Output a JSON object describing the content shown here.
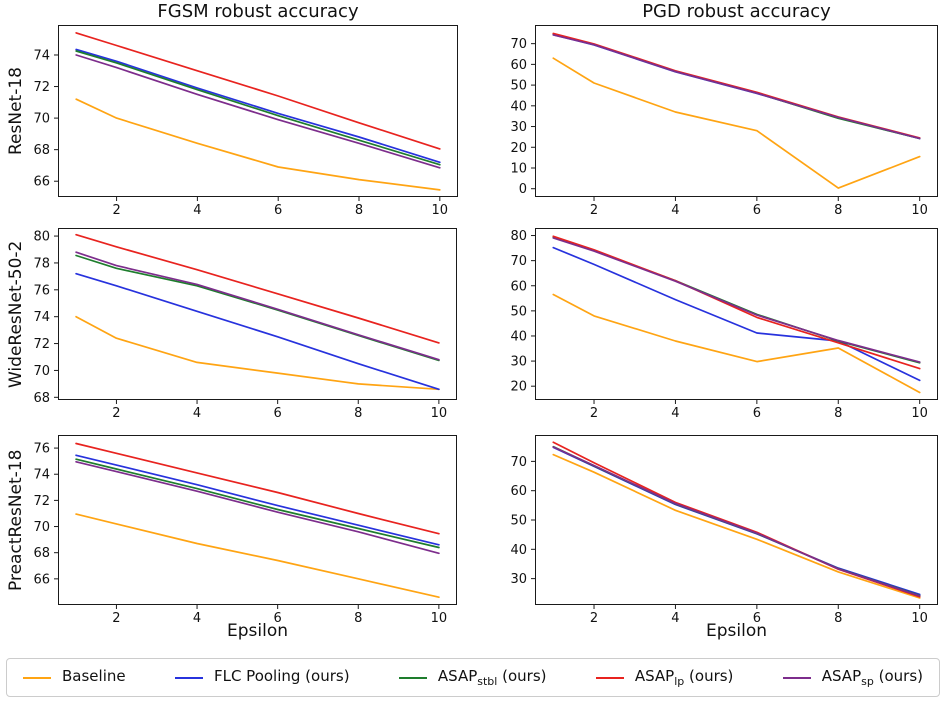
{
  "figure": {
    "col_titles": [
      "FGSM robust accuracy",
      "PGD robust accuracy"
    ],
    "row_labels": [
      "ResNet-18",
      "WideResNet-50-2",
      "PreactResNet-18"
    ],
    "xlabel": "Epsilon",
    "axis_color": "#1a1a1a",
    "legend": {
      "items": [
        {
          "main": "Baseline",
          "sub": "",
          "rest": "",
          "color": "#FFA413"
        },
        {
          "main": "FLC Pooling (ours)",
          "sub": "",
          "rest": "",
          "color": "#2732DD"
        },
        {
          "main": "ASAP",
          "sub": "stbl",
          "rest": " (ours)",
          "color": "#1E7D2D"
        },
        {
          "main": "ASAP",
          "sub": "lp",
          "rest": " (ours)",
          "color": "#E8231F"
        },
        {
          "main": "ASAP",
          "sub": "sp",
          "rest": " (ours)",
          "color": "#7D2D8C"
        }
      ]
    }
  },
  "chart_data": [
    {
      "type": "line",
      "model": "ResNet-18",
      "attack": "FGSM",
      "x": [
        1,
        2,
        4,
        6,
        8,
        10
      ],
      "xlim": [
        0.55,
        10.45
      ],
      "ylim": [
        65.0,
        75.9
      ],
      "xticks": [
        2,
        4,
        6,
        8,
        10
      ],
      "yticks": [
        66,
        68,
        70,
        72,
        74
      ],
      "grid": false,
      "series": [
        {
          "name": "Baseline",
          "color": "#FFA413",
          "values": [
            71.2,
            70.0,
            68.4,
            66.9,
            66.1,
            65.45
          ]
        },
        {
          "name": "FLC Pooling (ours)",
          "color": "#2732DD",
          "values": [
            74.35,
            73.6,
            71.9,
            70.3,
            68.8,
            67.2
          ]
        },
        {
          "name": "ASAP_stbl (ours)",
          "color": "#1E7D2D",
          "values": [
            74.25,
            73.5,
            71.8,
            70.15,
            68.6,
            67.05
          ]
        },
        {
          "name": "ASAP_lp (ours)",
          "color": "#E8231F",
          "values": [
            75.4,
            74.6,
            73.0,
            71.4,
            69.7,
            68.05
          ]
        },
        {
          "name": "ASAP_sp (ours)",
          "color": "#7D2D8C",
          "values": [
            74.0,
            73.2,
            71.5,
            69.9,
            68.4,
            66.85
          ]
        }
      ]
    },
    {
      "type": "line",
      "model": "ResNet-18",
      "attack": "PGD",
      "x": [
        1,
        2,
        4,
        6,
        8,
        10
      ],
      "xlim": [
        0.55,
        10.45
      ],
      "ylim": [
        -4,
        79
      ],
      "xticks": [
        2,
        4,
        6,
        8,
        10
      ],
      "yticks": [
        0,
        10,
        20,
        30,
        40,
        50,
        60,
        70
      ],
      "grid": false,
      "series": [
        {
          "name": "Baseline",
          "color": "#FFA413",
          "values": [
            63.0,
            51.0,
            37.0,
            28.0,
            0.3,
            15.5
          ]
        },
        {
          "name": "FLC Pooling (ours)",
          "color": "#2732DD",
          "values": [
            74.3,
            69.4,
            56.4,
            46.0,
            34.3,
            24.2
          ]
        },
        {
          "name": "ASAP_stbl (ours)",
          "color": "#1E7D2D",
          "values": [
            74.5,
            69.6,
            56.6,
            46.2,
            34.0,
            24.3
          ]
        },
        {
          "name": "ASAP_lp (ours)",
          "color": "#E8231F",
          "values": [
            74.9,
            69.9,
            56.9,
            46.5,
            34.6,
            24.5
          ]
        },
        {
          "name": "ASAP_sp (ours)",
          "color": "#7D2D8C",
          "values": [
            74.2,
            69.5,
            56.5,
            46.1,
            34.4,
            24.3
          ]
        }
      ]
    },
    {
      "type": "line",
      "model": "WideResNet-50-2",
      "attack": "FGSM",
      "x": [
        1,
        2,
        4,
        6,
        8,
        10
      ],
      "xlim": [
        0.55,
        10.45
      ],
      "ylim": [
        67.8,
        80.6
      ],
      "xticks": [
        2,
        4,
        6,
        8,
        10
      ],
      "yticks": [
        68,
        70,
        72,
        74,
        76,
        78,
        80
      ],
      "grid": false,
      "series": [
        {
          "name": "Baseline",
          "color": "#FFA413",
          "values": [
            74.0,
            72.4,
            70.6,
            69.8,
            69.0,
            68.6
          ]
        },
        {
          "name": "FLC Pooling (ours)",
          "color": "#2732DD",
          "values": [
            77.2,
            76.3,
            74.4,
            72.5,
            70.5,
            68.6
          ]
        },
        {
          "name": "ASAP_stbl (ours)",
          "color": "#1E7D2D",
          "values": [
            78.55,
            77.6,
            76.3,
            74.5,
            72.6,
            70.75
          ]
        },
        {
          "name": "ASAP_lp (ours)",
          "color": "#E8231F",
          "values": [
            80.1,
            79.2,
            77.5,
            75.7,
            73.9,
            72.05
          ]
        },
        {
          "name": "ASAP_sp (ours)",
          "color": "#7D2D8C",
          "values": [
            78.8,
            77.8,
            76.4,
            74.55,
            72.65,
            70.8
          ]
        }
      ]
    },
    {
      "type": "line",
      "model": "WideResNet-50-2",
      "attack": "PGD",
      "x": [
        1,
        2,
        4,
        6,
        8,
        10
      ],
      "xlim": [
        0.55,
        10.45
      ],
      "ylim": [
        14.5,
        83
      ],
      "xticks": [
        2,
        4,
        6,
        8,
        10
      ],
      "yticks": [
        20,
        30,
        40,
        50,
        60,
        70,
        80
      ],
      "grid": false,
      "series": [
        {
          "name": "Baseline",
          "color": "#FFA413",
          "values": [
            56.5,
            48.0,
            38.0,
            29.8,
            35.2,
            17.5
          ]
        },
        {
          "name": "FLC Pooling (ours)",
          "color": "#2732DD",
          "values": [
            75.2,
            68.5,
            54.5,
            41.2,
            38.0,
            22.3
          ]
        },
        {
          "name": "ASAP_stbl (ours)",
          "color": "#1E7D2D",
          "values": [
            79.3,
            74.0,
            62.0,
            48.6,
            38.0,
            29.3
          ]
        },
        {
          "name": "ASAP_lp (ours)",
          "color": "#E8231F",
          "values": [
            79.7,
            74.3,
            62.0,
            47.4,
            37.3,
            27.0
          ]
        },
        {
          "name": "ASAP_sp (ours)",
          "color": "#7D2D8C",
          "values": [
            79.0,
            73.8,
            61.8,
            48.3,
            38.2,
            29.6
          ]
        }
      ]
    },
    {
      "type": "line",
      "model": "PreactResNet-18",
      "attack": "FGSM",
      "x": [
        1,
        2,
        4,
        6,
        8,
        10
      ],
      "xlim": [
        0.55,
        10.45
      ],
      "ylim": [
        64.0,
        77.0
      ],
      "xticks": [
        2,
        4,
        6,
        8,
        10
      ],
      "yticks": [
        66,
        68,
        70,
        72,
        74,
        76
      ],
      "grid": false,
      "series": [
        {
          "name": "Baseline",
          "color": "#FFA413",
          "values": [
            70.95,
            70.2,
            68.7,
            67.4,
            66.0,
            64.6
          ]
        },
        {
          "name": "FLC Pooling (ours)",
          "color": "#2732DD",
          "values": [
            75.45,
            74.7,
            73.2,
            71.6,
            70.1,
            68.6
          ]
        },
        {
          "name": "ASAP_stbl (ours)",
          "color": "#1E7D2D",
          "values": [
            75.15,
            74.4,
            72.9,
            71.3,
            69.85,
            68.4
          ]
        },
        {
          "name": "ASAP_lp (ours)",
          "color": "#E8231F",
          "values": [
            76.35,
            75.6,
            74.1,
            72.6,
            71.0,
            69.45
          ]
        },
        {
          "name": "ASAP_sp (ours)",
          "color": "#7D2D8C",
          "values": [
            74.95,
            74.2,
            72.7,
            71.1,
            69.6,
            67.95
          ]
        }
      ]
    },
    {
      "type": "line",
      "model": "PreactResNet-18",
      "attack": "PGD",
      "x": [
        1,
        2,
        4,
        6,
        8,
        10
      ],
      "xlim": [
        0.55,
        10.45
      ],
      "ylim": [
        21,
        79
      ],
      "xticks": [
        2,
        4,
        6,
        8,
        10
      ],
      "yticks": [
        30,
        40,
        50,
        60,
        70
      ],
      "grid": false,
      "series": [
        {
          "name": "Baseline",
          "color": "#FFA413",
          "values": [
            72.3,
            66.3,
            53.3,
            43.4,
            32.3,
            23.4
          ]
        },
        {
          "name": "FLC Pooling (ours)",
          "color": "#2732DD",
          "values": [
            74.8,
            68.3,
            55.3,
            45.3,
            33.6,
            24.6
          ]
        },
        {
          "name": "ASAP_stbl (ours)",
          "color": "#1E7D2D",
          "values": [
            75.0,
            68.5,
            55.5,
            45.4,
            33.4,
            24.2
          ]
        },
        {
          "name": "ASAP_lp (ours)",
          "color": "#E8231F",
          "values": [
            76.5,
            69.5,
            56.0,
            45.8,
            33.2,
            23.8
          ]
        },
        {
          "name": "ASAP_sp (ours)",
          "color": "#7D2D8C",
          "values": [
            74.9,
            68.6,
            55.6,
            45.5,
            33.3,
            24.1
          ]
        }
      ]
    }
  ]
}
